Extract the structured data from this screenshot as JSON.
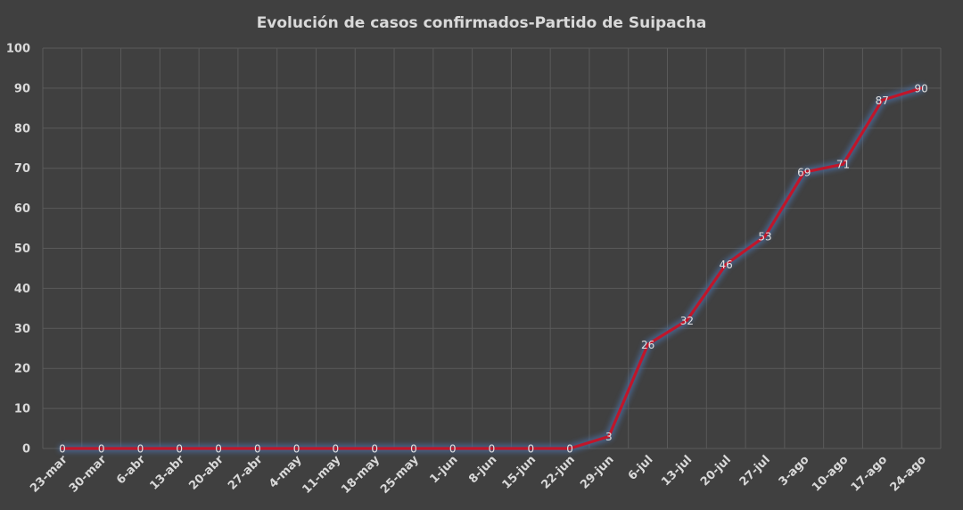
{
  "chart_data": {
    "type": "line",
    "title": "Evolución  de casos confirmados-Partido  de Suipacha",
    "xlabel": "",
    "ylabel": "",
    "ylim": [
      0,
      100
    ],
    "yticks": [
      "0",
      "10",
      "20",
      "30",
      "40",
      "50",
      "60",
      "70",
      "80",
      "90",
      "100"
    ],
    "grid": true,
    "legend": "none",
    "categories": [
      "23-mar",
      "30-mar",
      "6-abr",
      "13-abr",
      "20-abr",
      "27-abr",
      "4-may",
      "11-may",
      "18-may",
      "25-may",
      "1-jun",
      "8-jun",
      "15-jun",
      "22-jun",
      "29-jun",
      "6-jul",
      "13-jul",
      "20-jul",
      "27-jul",
      "3-ago",
      "10-ago",
      "17-ago",
      "24-ago"
    ],
    "series": [
      {
        "values": [
          0,
          0,
          0,
          0,
          0,
          0,
          0,
          0,
          0,
          0,
          0,
          0,
          0,
          0,
          3,
          26,
          32,
          46,
          53,
          69,
          71,
          87,
          90
        ],
        "data_labels": [
          "0",
          "0",
          "0",
          "0",
          "0",
          "0",
          "0",
          "0",
          "0",
          "0",
          "0",
          "0",
          "0",
          "0",
          "3",
          "26",
          "32",
          "46",
          "53",
          "69",
          "71",
          "87",
          "90"
        ],
        "color": "#c0162a"
      }
    ],
    "colors": {
      "background": "#404040",
      "gridline": "#5a5a5a",
      "text": "#d9d9d9",
      "glow": "#4a6a9a"
    }
  }
}
